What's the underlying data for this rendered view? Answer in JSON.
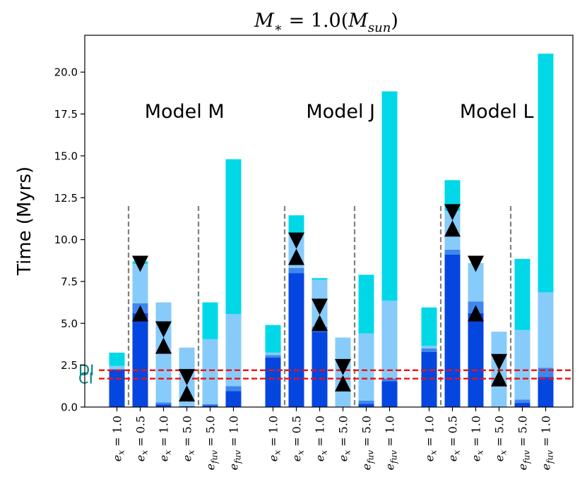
{
  "chart_data": {
    "type": "bar",
    "title": "M∗ = 1.0(Msun)",
    "title_parts": {
      "lhs": "M",
      "lhs_sub": "∗",
      "eq": " = 1.0(",
      "rhs": "M",
      "rhs_sub": "sun",
      "close": ")"
    },
    "ylabel": "Time (Myrs)",
    "xlabel": "",
    "ylim": [
      0,
      22.2
    ],
    "yticks": [
      "0.0",
      "2.5",
      "5.0",
      "7.5",
      "10.0",
      "12.5",
      "15.0",
      "17.5",
      "20.0"
    ],
    "ytick_values": [
      0,
      2.5,
      5,
      7.5,
      10,
      12.5,
      15,
      17.5,
      20
    ],
    "colors": {
      "dark": "#0646e0",
      "mid": "#3f87ee",
      "light": "#87cbfa",
      "cyan": "#00d8e8",
      "line": "#ee1111",
      "divider": "#808080",
      "marker": "#000000",
      "line_label": "#008080"
    },
    "hlines": [
      {
        "label": "DI",
        "value": 2.2
      },
      {
        "label": "CI",
        "value": 1.7
      }
    ],
    "models": [
      {
        "name": "Model M",
        "label_y": 17.7
      },
      {
        "name": "Model J",
        "label_y": 17.7
      },
      {
        "name": "Model L",
        "label_y": 17.7
      }
    ],
    "divider_top": 12.0,
    "categories": [
      {
        "var": "e",
        "sub": "x",
        "val": "= 1.0"
      },
      {
        "var": "e",
        "sub": "x",
        "val": "= 0.5"
      },
      {
        "var": "e",
        "sub": "x",
        "val": "= 1.0"
      },
      {
        "var": "e",
        "sub": "x",
        "val": "= 5.0"
      },
      {
        "var": "e",
        "sub": "fuv",
        "val": "= 5.0"
      },
      {
        "var": "e",
        "sub": "fuv",
        "val": "= 1.0"
      }
    ],
    "groups": [
      {
        "model": "Model M",
        "bars": [
          {
            "segments": [
              [
                0,
                2.25,
                "dark"
              ],
              [
                2.25,
                2.45,
                "light"
              ],
              [
                2.45,
                3.25,
                "cyan"
              ]
            ],
            "markers": []
          },
          {
            "segments": [
              [
                0,
                5.6,
                "dark"
              ],
              [
                5.6,
                6.2,
                "mid"
              ],
              [
                6.2,
                8.55,
                "light"
              ],
              [
                8.55,
                8.7,
                "cyan"
              ]
            ],
            "markers": [
              [
                "down",
                8.55
              ],
              [
                "up",
                5.6
              ]
            ]
          },
          {
            "segments": [
              [
                0,
                0.15,
                "dark"
              ],
              [
                0.15,
                0.28,
                "mid"
              ],
              [
                0.28,
                6.25,
                "light"
              ]
            ],
            "markers": [
              [
                "hourglass",
                4.15
              ]
            ]
          },
          {
            "segments": [
              [
                0,
                0.05,
                "dark"
              ],
              [
                0.05,
                3.55,
                "light"
              ]
            ],
            "markers": [
              [
                "hourglass",
                1.3
              ]
            ]
          },
          {
            "segments": [
              [
                0,
                0.1,
                "dark"
              ],
              [
                0.1,
                0.18,
                "mid"
              ],
              [
                0.18,
                4.05,
                "light"
              ],
              [
                4.05,
                6.25,
                "cyan"
              ]
            ],
            "markers": []
          },
          {
            "segments": [
              [
                0,
                0.95,
                "dark"
              ],
              [
                0.95,
                1.25,
                "mid"
              ],
              [
                1.25,
                5.55,
                "light"
              ],
              [
                5.55,
                14.8,
                "cyan"
              ]
            ],
            "markers": []
          }
        ]
      },
      {
        "model": "Model J",
        "bars": [
          {
            "segments": [
              [
                0,
                2.95,
                "dark"
              ],
              [
                2.95,
                3.1,
                "mid"
              ],
              [
                3.1,
                3.25,
                "light"
              ],
              [
                3.25,
                4.9,
                "cyan"
              ]
            ],
            "markers": []
          },
          {
            "segments": [
              [
                0,
                8.0,
                "dark"
              ],
              [
                8.0,
                8.3,
                "mid"
              ],
              [
                8.3,
                10.3,
                "light"
              ],
              [
                10.3,
                11.45,
                "cyan"
              ]
            ],
            "markers": [
              [
                "hourglass",
                9.45
              ]
            ]
          },
          {
            "segments": [
              [
                0,
                4.5,
                "dark"
              ],
              [
                4.5,
                4.8,
                "mid"
              ],
              [
                4.8,
                7.6,
                "light"
              ],
              [
                7.6,
                7.7,
                "cyan"
              ]
            ],
            "markers": [
              [
                "hourglass",
                5.5
              ]
            ]
          },
          {
            "segments": [
              [
                0,
                4.15,
                "light"
              ]
            ],
            "markers": [
              [
                "hourglass",
                1.9
              ]
            ]
          },
          {
            "segments": [
              [
                0,
                0.2,
                "dark"
              ],
              [
                0.2,
                0.38,
                "mid"
              ],
              [
                0.38,
                4.4,
                "light"
              ],
              [
                4.4,
                7.9,
                "cyan"
              ]
            ],
            "markers": []
          },
          {
            "segments": [
              [
                0,
                1.55,
                "dark"
              ],
              [
                1.55,
                1.7,
                "mid"
              ],
              [
                1.7,
                6.35,
                "light"
              ],
              [
                6.35,
                18.85,
                "cyan"
              ]
            ],
            "markers": []
          }
        ]
      },
      {
        "model": "Model L",
        "bars": [
          {
            "segments": [
              [
                0,
                3.3,
                "dark"
              ],
              [
                3.3,
                3.5,
                "mid"
              ],
              [
                3.5,
                3.65,
                "light"
              ],
              [
                3.65,
                5.95,
                "cyan"
              ]
            ],
            "markers": []
          },
          {
            "segments": [
              [
                0,
                9.1,
                "dark"
              ],
              [
                9.1,
                9.4,
                "mid"
              ],
              [
                9.4,
                11.7,
                "light"
              ],
              [
                11.7,
                13.55,
                "cyan"
              ]
            ],
            "markers": [
              [
                "hourglass",
                11.15
              ]
            ]
          },
          {
            "segments": [
              [
                0,
                5.6,
                "dark"
              ],
              [
                5.6,
                6.3,
                "mid"
              ],
              [
                6.3,
                8.6,
                "light"
              ]
            ],
            "markers": [
              [
                "down",
                8.55
              ],
              [
                "up",
                5.6
              ]
            ]
          },
          {
            "segments": [
              [
                0,
                4.5,
                "light"
              ]
            ],
            "markers": [
              [
                "hourglass",
                2.2
              ]
            ]
          },
          {
            "segments": [
              [
                0,
                0.25,
                "dark"
              ],
              [
                0.25,
                0.45,
                "mid"
              ],
              [
                0.45,
                4.6,
                "light"
              ],
              [
                4.6,
                8.85,
                "cyan"
              ]
            ],
            "markers": []
          },
          {
            "segments": [
              [
                0,
                1.8,
                "dark"
              ],
              [
                1.8,
                2.35,
                "mid"
              ],
              [
                2.35,
                6.85,
                "light"
              ],
              [
                6.85,
                21.1,
                "cyan"
              ]
            ],
            "markers": []
          }
        ]
      }
    ]
  }
}
